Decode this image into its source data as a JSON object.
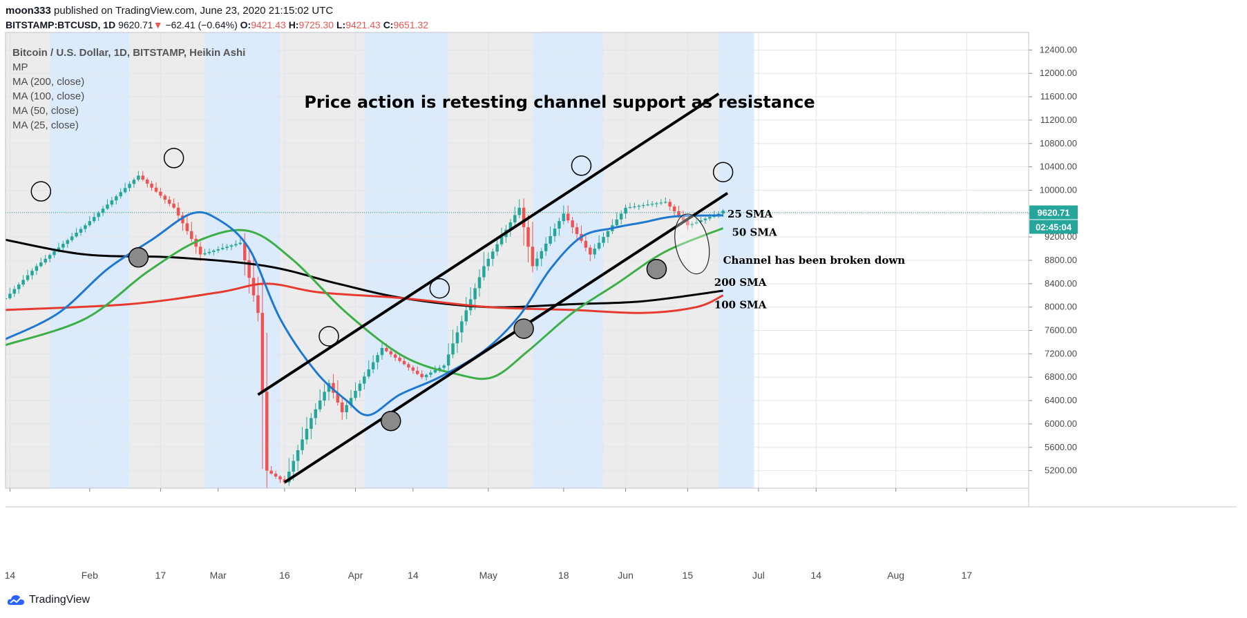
{
  "header": {
    "author": "moon333",
    "published": "published on TradingView.com, June 23, 2020 21:15:02 UTC",
    "symbol": "BITSTAMP:BTCUSD, 1D",
    "last": "9620.71",
    "change_arrow": "▼",
    "change": "−62.41 (−0.64%)",
    "open_label": "O:",
    "open": "9421.43",
    "high_label": "H:",
    "high": "9725.30",
    "low_label": "L:",
    "low": "9421.43",
    "close_label": "C:",
    "close": "9651.32"
  },
  "legend": {
    "title": "Bitcoin / U.S. Dollar, 1D, BITSTAMP, Heikin Ashi",
    "items": [
      "MP",
      "MA (200, close)",
      "MA (100, close)",
      "MA (50, close)",
      "MA (25, close)"
    ]
  },
  "brand": {
    "name": "TradingView",
    "icon": "tradingview-cloud-icon"
  },
  "colors": {
    "up": "#26a69a",
    "down": "#ef5350",
    "ma25": "#1e78d2",
    "ma50": "#3caf46",
    "ma100": "#e8392e",
    "ma200": "#000000",
    "band_blue": "#dcebfb",
    "band_gray": "#ececec"
  },
  "chart_data": {
    "type": "candlestick",
    "title": "Price action is retesting channel support as resistance",
    "chart_style": "Heikin Ashi",
    "y_ticks": [
      5200,
      5600,
      6000,
      6400,
      6800,
      7200,
      7600,
      8000,
      8400,
      8800,
      9200,
      9600,
      10000,
      10400,
      10800,
      11200,
      11600,
      12000,
      12400
    ],
    "ylim": [
      4900,
      12700
    ],
    "x_ticks": [
      "14",
      "Feb",
      "17",
      "Mar",
      "16",
      "Apr",
      "14",
      "May",
      "18",
      "Jun",
      "15",
      "Jul",
      "14",
      "Aug",
      "17"
    ],
    "x_tick_dates": [
      "2020-01-14",
      "2020-02-01",
      "2020-02-17",
      "2020-03-01",
      "2020-03-16",
      "2020-04-01",
      "2020-04-14",
      "2020-05-01",
      "2020-05-18",
      "2020-06-01",
      "2020-06-15",
      "2020-07-01",
      "2020-07-14",
      "2020-08-01",
      "2020-08-17"
    ],
    "xlim": [
      "2020-01-13",
      "2020-08-31"
    ],
    "last_price_label": "9620.71",
    "countdown_label": "02:45:04",
    "price_line": 9620.71,
    "key_prices": [
      {
        "date": "2020-01-13",
        "price": 8150
      },
      {
        "date": "2020-01-20",
        "price": 8700
      },
      {
        "date": "2020-01-31",
        "price": 9400
      },
      {
        "date": "2020-02-12",
        "price": 10250
      },
      {
        "date": "2020-02-20",
        "price": 9700
      },
      {
        "date": "2020-02-26",
        "price": 8900
      },
      {
        "date": "2020-03-06",
        "price": 9100
      },
      {
        "date": "2020-03-10",
        "price": 7900
      },
      {
        "date": "2020-03-12",
        "price": 5200
      },
      {
        "date": "2020-03-16",
        "price": 5000
      },
      {
        "date": "2020-03-22",
        "price": 6100
      },
      {
        "date": "2020-03-26",
        "price": 6700
      },
      {
        "date": "2020-03-29",
        "price": 6200
      },
      {
        "date": "2020-04-07",
        "price": 7300
      },
      {
        "date": "2020-04-16",
        "price": 6800
      },
      {
        "date": "2020-04-21",
        "price": 7000
      },
      {
        "date": "2020-04-30",
        "price": 8700
      },
      {
        "date": "2020-05-08",
        "price": 9700
      },
      {
        "date": "2020-05-11",
        "price": 8700
      },
      {
        "date": "2020-05-18",
        "price": 9600
      },
      {
        "date": "2020-05-24",
        "price": 8900
      },
      {
        "date": "2020-06-01",
        "price": 9700
      },
      {
        "date": "2020-06-10",
        "price": 9800
      },
      {
        "date": "2020-06-15",
        "price": 9400
      },
      {
        "date": "2020-06-22",
        "price": 9600
      },
      {
        "date": "2020-06-23",
        "price": 9651
      }
    ],
    "ma_series": [
      {
        "name": "25 SMA",
        "key": "ma25",
        "points": [
          [
            "2020-01-13",
            7450
          ],
          [
            "2020-01-25",
            7900
          ],
          [
            "2020-02-05",
            8650
          ],
          [
            "2020-02-15",
            9150
          ],
          [
            "2020-02-24",
            9600
          ],
          [
            "2020-03-01",
            9500
          ],
          [
            "2020-03-08",
            9000
          ],
          [
            "2020-03-15",
            7800
          ],
          [
            "2020-03-23",
            6900
          ],
          [
            "2020-03-30",
            6400
          ],
          [
            "2020-04-04",
            6150
          ],
          [
            "2020-04-11",
            6500
          ],
          [
            "2020-04-20",
            6800
          ],
          [
            "2020-04-30",
            7250
          ],
          [
            "2020-05-08",
            7850
          ],
          [
            "2020-05-15",
            8650
          ],
          [
            "2020-05-22",
            9200
          ],
          [
            "2020-05-29",
            9350
          ],
          [
            "2020-06-05",
            9450
          ],
          [
            "2020-06-12",
            9550
          ],
          [
            "2020-06-23",
            9570
          ]
        ]
      },
      {
        "name": "50 SMA",
        "key": "ma50",
        "points": [
          [
            "2020-01-13",
            7350
          ],
          [
            "2020-01-31",
            7800
          ],
          [
            "2020-02-14",
            8600
          ],
          [
            "2020-02-26",
            9150
          ],
          [
            "2020-03-08",
            9300
          ],
          [
            "2020-03-18",
            8800
          ],
          [
            "2020-03-30",
            7900
          ],
          [
            "2020-04-12",
            7150
          ],
          [
            "2020-04-24",
            6850
          ],
          [
            "2020-05-02",
            6800
          ],
          [
            "2020-05-10",
            7250
          ],
          [
            "2020-05-20",
            7900
          ],
          [
            "2020-05-30",
            8400
          ],
          [
            "2020-06-10",
            8950
          ],
          [
            "2020-06-23",
            9350
          ]
        ]
      },
      {
        "name": "100 SMA",
        "key": "ma100",
        "points": [
          [
            "2020-01-13",
            7950
          ],
          [
            "2020-02-10",
            8050
          ],
          [
            "2020-03-01",
            8250
          ],
          [
            "2020-03-12",
            8400
          ],
          [
            "2020-03-24",
            8250
          ],
          [
            "2020-04-12",
            8150
          ],
          [
            "2020-05-01",
            8000
          ],
          [
            "2020-05-20",
            7950
          ],
          [
            "2020-06-05",
            7900
          ],
          [
            "2020-06-17",
            8000
          ],
          [
            "2020-06-23",
            8200
          ]
        ]
      },
      {
        "name": "200 SMA",
        "key": "ma200",
        "points": [
          [
            "2020-01-13",
            9150
          ],
          [
            "2020-01-31",
            8900
          ],
          [
            "2020-02-20",
            8850
          ],
          [
            "2020-03-12",
            8700
          ],
          [
            "2020-03-28",
            8400
          ],
          [
            "2020-04-12",
            8150
          ],
          [
            "2020-05-01",
            8000
          ],
          [
            "2020-05-20",
            8050
          ],
          [
            "2020-06-05",
            8100
          ],
          [
            "2020-06-23",
            8280
          ]
        ]
      }
    ],
    "trendlines": [
      {
        "from": [
          "2020-03-10",
          6500
        ],
        "to": [
          "2020-06-22",
          11650
        ]
      },
      {
        "from": [
          "2020-03-16",
          5000
        ],
        "to": [
          "2020-06-24",
          9950
        ]
      }
    ],
    "resistance_circles": [
      [
        "2020-01-21",
        9980
      ],
      [
        "2020-02-20",
        10550
      ],
      [
        "2020-03-26",
        7500
      ],
      [
        "2020-04-20",
        8320
      ],
      [
        "2020-05-22",
        10420
      ],
      [
        "2020-06-23",
        10310
      ]
    ],
    "support_circles": [
      [
        "2020-02-12",
        8850
      ],
      [
        "2020-04-09",
        6050
      ],
      [
        "2020-05-09",
        7630
      ],
      [
        "2020-06-08",
        8650
      ]
    ],
    "annotations": [
      {
        "text": "25 SMA",
        "date": "2020-06-24",
        "price": 9590
      },
      {
        "text": "50 SMA",
        "date": "2020-06-25",
        "price": 9280
      },
      {
        "text": "Channel has been broken down",
        "date": "2020-06-23",
        "price": 8800
      },
      {
        "text": "200 SMA",
        "date": "2020-06-21",
        "price": 8420
      },
      {
        "text": "100 SMA",
        "date": "2020-06-21",
        "price": 8040
      }
    ],
    "ellipse": {
      "center": [
        "2020-06-16",
        9080
      ],
      "radius_days": 3.7,
      "radius_price": 520,
      "rotation": 12
    },
    "bands": [
      {
        "from": "2020-01-13",
        "to": "2020-01-23",
        "color": "band_gray"
      },
      {
        "from": "2020-01-23",
        "to": "2020-02-10",
        "color": "band_blue"
      },
      {
        "from": "2020-02-10",
        "to": "2020-02-27",
        "color": "band_gray"
      },
      {
        "from": "2020-02-27",
        "to": "2020-03-15",
        "color": "band_blue"
      },
      {
        "from": "2020-03-15",
        "to": "2020-04-03",
        "color": "band_gray"
      },
      {
        "from": "2020-04-03",
        "to": "2020-04-22",
        "color": "band_blue"
      },
      {
        "from": "2020-04-22",
        "to": "2020-05-11",
        "color": "band_gray"
      },
      {
        "from": "2020-05-11",
        "to": "2020-05-27",
        "color": "band_blue"
      },
      {
        "from": "2020-05-27",
        "to": "2020-06-13",
        "color": "band_gray"
      },
      {
        "from": "2020-06-13",
        "to": "2020-06-30",
        "color": "band_blue"
      },
      {
        "from": "2020-06-05",
        "to": "2020-06-22",
        "color": "band_gray"
      },
      {
        "from": "2020-06-22",
        "to": "2020-06-24",
        "color": "band_blue"
      }
    ]
  }
}
